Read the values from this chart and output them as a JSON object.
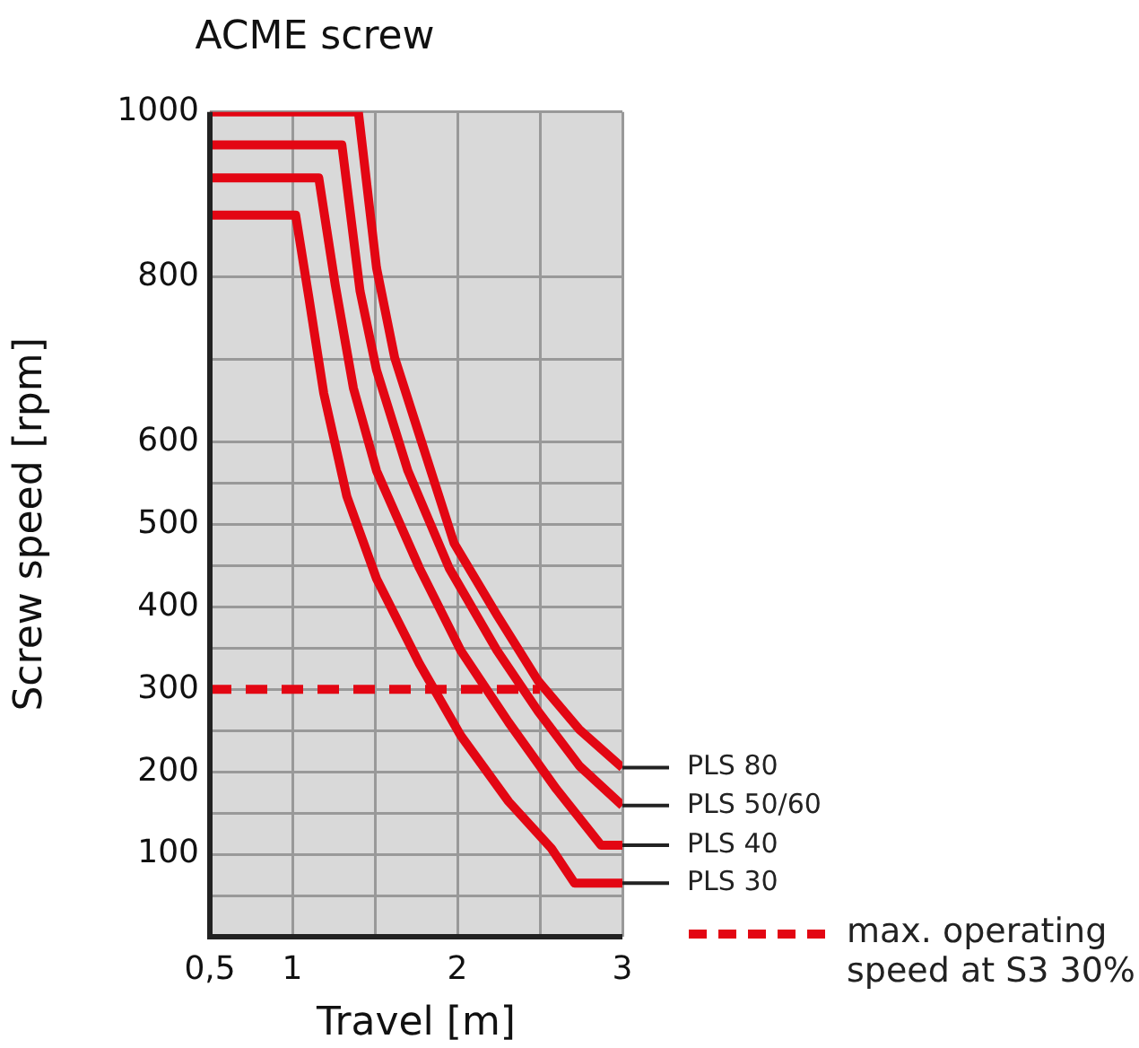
{
  "chart_data": {
    "type": "line",
    "title": "ACME screw",
    "xlabel": "Travel [m]",
    "ylabel": "Screw speed [rpm]",
    "xlim": [
      0.5,
      3
    ],
    "xticks": [
      {
        "value": 0.5,
        "label": "0,5"
      },
      1,
      {
        "value": 1.5,
        "label": null
      },
      2,
      {
        "value": 2.5,
        "label": null
      },
      3
    ],
    "ylim": [
      0,
      1000
    ],
    "yticks": [
      {
        "value": 0,
        "label": null
      },
      {
        "value": 50,
        "label": null
      },
      100,
      {
        "value": 150,
        "label": null
      },
      200,
      {
        "value": 250,
        "label": null
      },
      300,
      {
        "value": 350,
        "label": null
      },
      400,
      {
        "value": 450,
        "label": null
      },
      500,
      {
        "value": 550,
        "label": null
      },
      600,
      {
        "value": 700,
        "label": null
      },
      800,
      1000
    ],
    "grid": true,
    "legend": "bottom right",
    "marker": "none",
    "series": [
      {
        "name": "PLS 80",
        "color": "#e30613",
        "line_style": "solid",
        "x": [
          0.5,
          1.4,
          1.51,
          1.62,
          1.77,
          1.98,
          2.24,
          2.49,
          2.74,
          3.0
        ],
        "values": [
          1000,
          1000,
          811,
          702,
          608,
          477,
          390,
          310,
          251,
          205
        ]
      },
      {
        "name": "PLS 50/60",
        "color": "#e30613",
        "line_style": "solid",
        "x": [
          0.5,
          1.3,
          1.41,
          1.51,
          1.7,
          1.95,
          2.24,
          2.49,
          2.74,
          3.0
        ],
        "values": [
          960,
          960,
          783,
          687,
          565,
          447,
          347,
          273,
          207,
          159
        ]
      },
      {
        "name": "PLS 40",
        "color": "#e30613",
        "line_style": "solid",
        "x": [
          0.5,
          1.16,
          1.26,
          1.37,
          1.51,
          1.77,
          2.02,
          2.31,
          2.6,
          2.87,
          3.0
        ],
        "values": [
          920,
          920,
          790,
          665,
          565,
          447,
          347,
          260,
          179,
          111,
          111
        ]
      },
      {
        "name": "PLS 30",
        "color": "#e30613",
        "line_style": "solid",
        "x": [
          0.5,
          1.02,
          1.1,
          1.19,
          1.33,
          1.51,
          1.77,
          2.02,
          2.31,
          2.57,
          2.71,
          3.0
        ],
        "values": [
          875,
          875,
          775,
          659,
          534,
          434,
          331,
          244,
          164,
          107,
          65,
          65
        ]
      },
      {
        "name": "max. operating speed at S3 30%",
        "color": "#e30613",
        "line_style": "dashed",
        "x": [
          0.5,
          2.5
        ],
        "values": [
          300,
          300
        ]
      }
    ]
  }
}
